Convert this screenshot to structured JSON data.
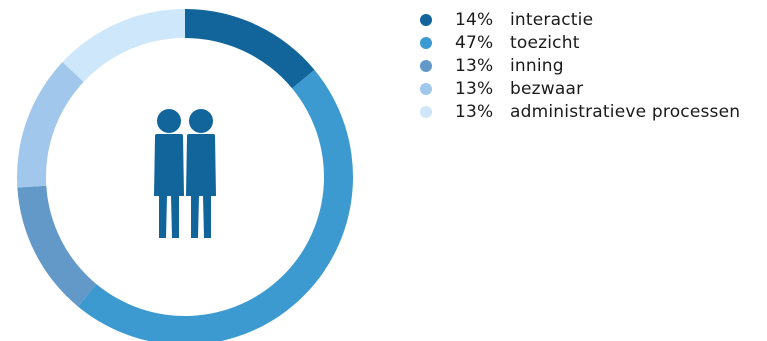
{
  "chart_data": {
    "type": "pie",
    "title": "",
    "slices": [
      {
        "label": "interactie",
        "value": 14,
        "value_label": "14%",
        "color": "#11659b"
      },
      {
        "label": "toezicht",
        "value": 47,
        "value_label": "47%",
        "color": "#3d9ad0"
      },
      {
        "label": "inning",
        "value": 13,
        "value_label": "13%",
        "color": "#6399c9"
      },
      {
        "label": "bezwaar",
        "value": 13,
        "value_label": "13%",
        "color": "#a1c8ec"
      },
      {
        "label": "administratieve processen",
        "value": 13,
        "value_label": "13%",
        "color": "#cfe7fb"
      }
    ],
    "legend_position": "right",
    "center_icon": "people-icon",
    "center_icon_color": "#11659b",
    "grid": false
  }
}
